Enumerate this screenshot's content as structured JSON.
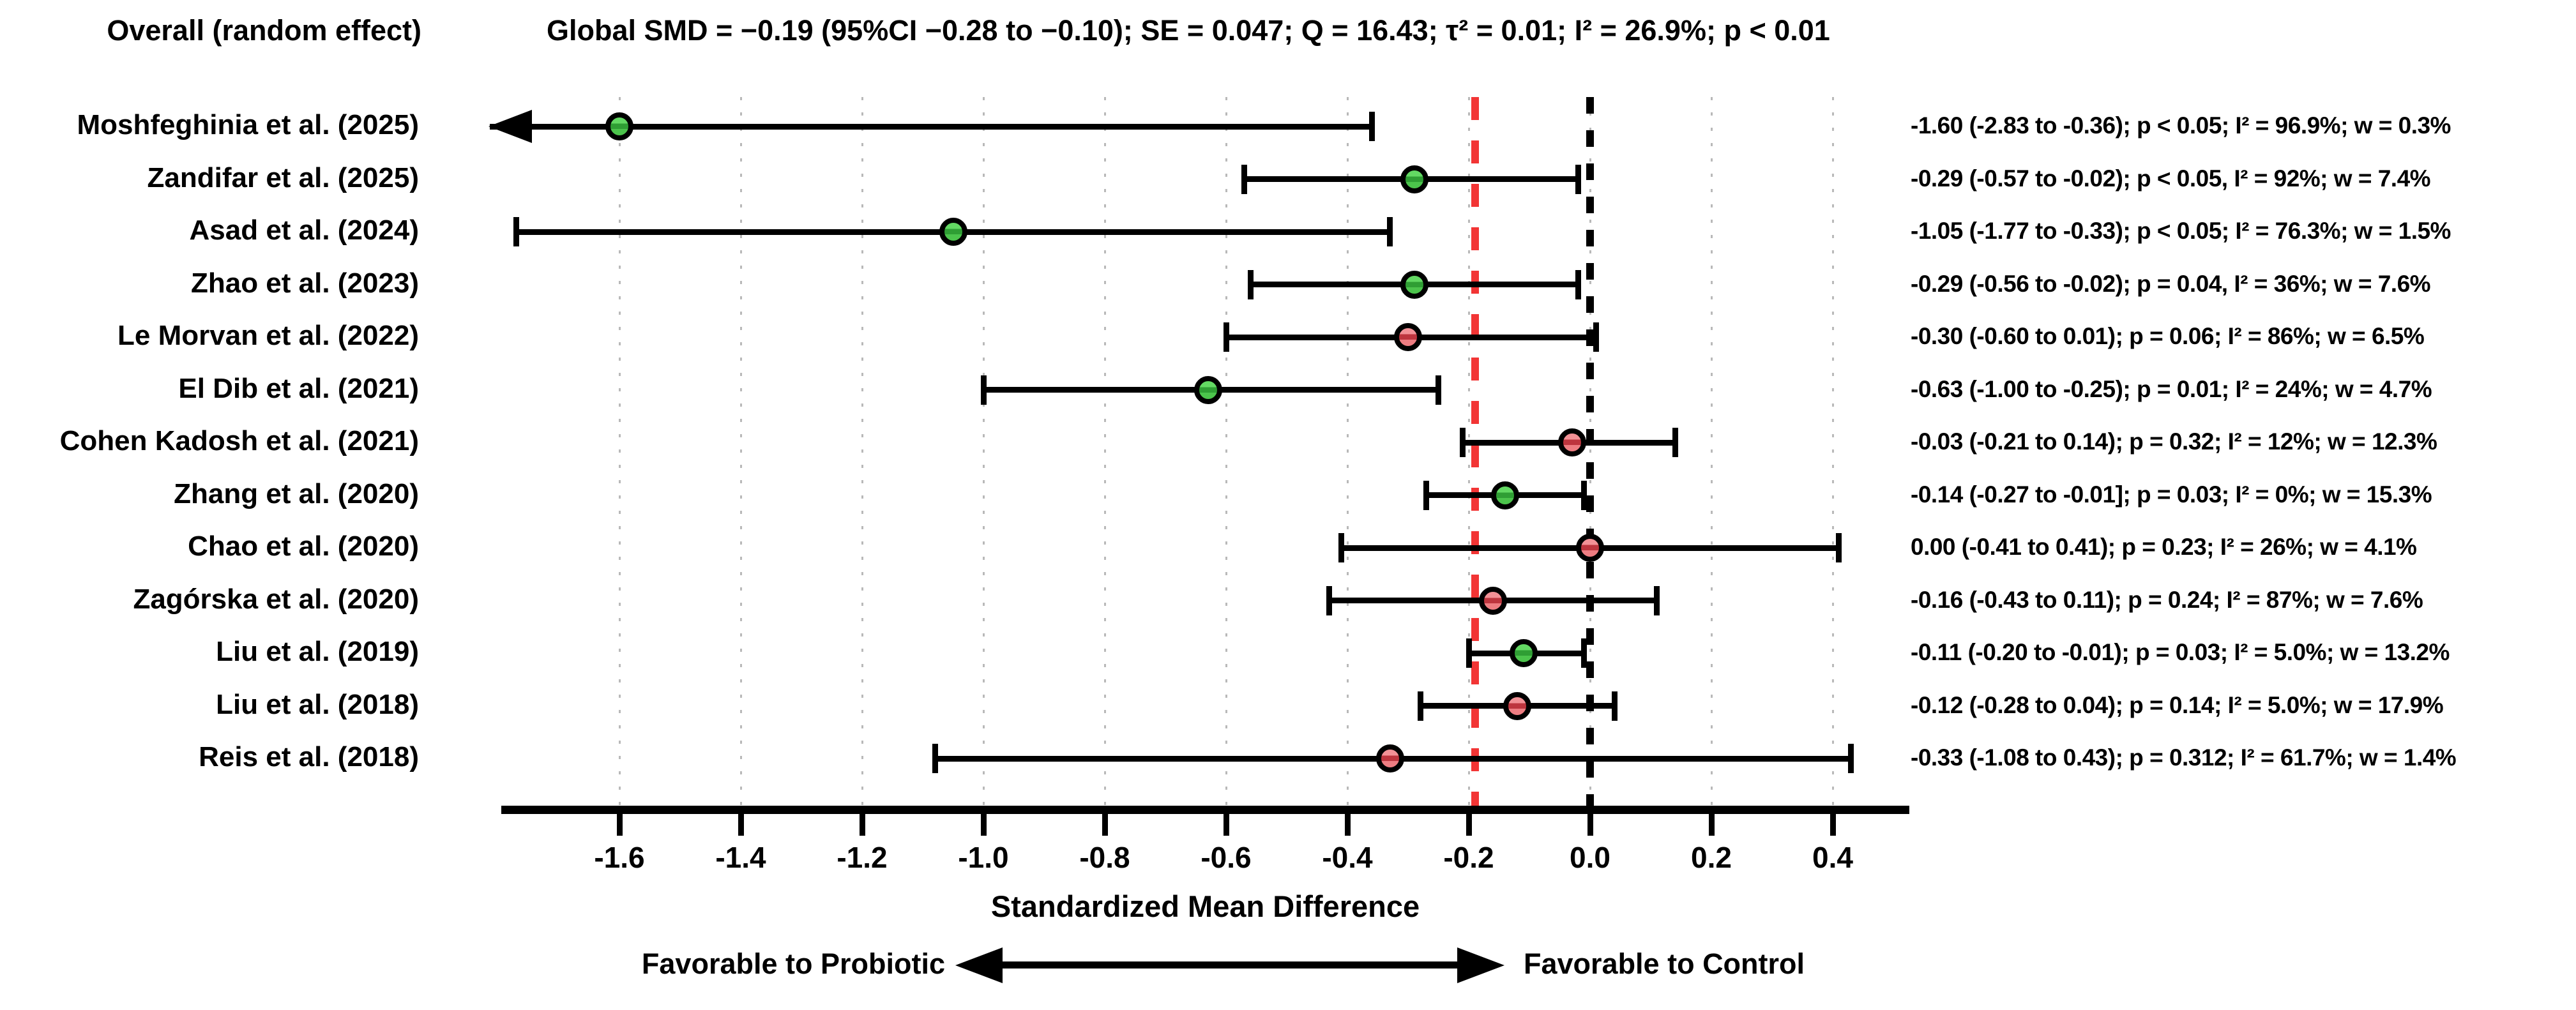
{
  "header": {
    "overall_label": "Overall (random effect)",
    "global_stats": "Global SMD = −0.19 (95%CI −0.28 to −0.10); SE = 0.047; Q = 16.43; τ² = 0.01; I² = 26.9%; p < 0.01"
  },
  "chart_data": {
    "type": "forest",
    "xlabel": "Standardized Mean Difference",
    "x_ticks": [
      -1.6,
      -1.4,
      -1.2,
      -1.0,
      -0.8,
      -0.6,
      -0.4,
      -0.2,
      0.0,
      0.2,
      0.4
    ],
    "xlim": [
      -1.79,
      0.53
    ],
    "grid": true,
    "null_line": 0.0,
    "global_effect_line": -0.19,
    "global_effect_line_style": "red-dashed",
    "null_line_style": "black-dashed",
    "studies": [
      {
        "label": "Moshfeghinia et al. (2025)",
        "smd": -1.6,
        "ci_low": -2.83,
        "ci_high": -0.36,
        "color": "green",
        "clipped_left": true,
        "stats": "-1.60 (-2.83 to -0.36); p < 0.05; I² =  96.9%; w = 0.3%"
      },
      {
        "label": "Zandifar et al. (2025)",
        "smd": -0.29,
        "ci_low": -0.57,
        "ci_high": -0.02,
        "color": "green",
        "clipped_left": false,
        "stats": "-0.29 (-0.57 to -0.02); p < 0.05, I² = 92%; w = 7.4%"
      },
      {
        "label": "Asad et al. (2024)",
        "smd": -1.05,
        "ci_low": -1.77,
        "ci_high": -0.33,
        "color": "green",
        "clipped_left": false,
        "stats": "-1.05 (-1.77 to -0.33); p < 0.05; I² = 76.3%; w = 1.5%"
      },
      {
        "label": "Zhao et al. (2023)",
        "smd": -0.29,
        "ci_low": -0.56,
        "ci_high": -0.02,
        "color": "green",
        "clipped_left": false,
        "stats": "-0.29 (-0.56 to -0.02); p = 0.04, I² = 36%; w = 7.6%"
      },
      {
        "label": "Le Morvan et al. (2022)",
        "smd": -0.3,
        "ci_low": -0.6,
        "ci_high": 0.01,
        "color": "red",
        "clipped_left": false,
        "stats": "-0.30 (-0.60 to 0.01); p = 0.06; I² = 86%; w = 6.5%"
      },
      {
        "label": "El Dib et al. (2021)",
        "smd": -0.63,
        "ci_low": -1.0,
        "ci_high": -0.25,
        "color": "green",
        "clipped_left": false,
        "stats": "-0.63 (-1.00 to -0.25); p = 0.01; I² = 24%; w = 4.7%"
      },
      {
        "label": "Cohen Kadosh et al. (2021)",
        "smd": -0.03,
        "ci_low": -0.21,
        "ci_high": 0.14,
        "color": "red",
        "clipped_left": false,
        "stats": "-0.03  (-0.21 to 0.14); p = 0.32; I² = 12%; w = 12.3%"
      },
      {
        "label": "Zhang et al. (2020)",
        "smd": -0.14,
        "ci_low": -0.27,
        "ci_high": -0.01,
        "color": "green",
        "clipped_left": false,
        "stats": "-0.14 (-0.27 to -0.01]; p = 0.03; I² = 0%; w = 15.3%"
      },
      {
        "label": "Chao et al. (2020)",
        "smd": 0.0,
        "ci_low": -0.41,
        "ci_high": 0.41,
        "color": "red",
        "clipped_left": false,
        "stats": "0.00 (-0.41 to 0.41); p = 0.23; I² = 26%; w = 4.1%"
      },
      {
        "label": "Zagórska et al. (2020)",
        "smd": -0.16,
        "ci_low": -0.43,
        "ci_high": 0.11,
        "color": "red",
        "clipped_left": false,
        "stats": "-0.16 (-0.43 to 0.11); p = 0.24; I² = 87%; w = 7.6%"
      },
      {
        "label": "Liu et al. (2019)",
        "smd": -0.11,
        "ci_low": -0.2,
        "ci_high": -0.01,
        "color": "green",
        "clipped_left": false,
        "stats": "-0.11 (-0.20 to -0.01); p = 0.03; I² = 5.0%; w = 13.2%"
      },
      {
        "label": "Liu et al. (2018)",
        "smd": -0.12,
        "ci_low": -0.28,
        "ci_high": 0.04,
        "color": "red",
        "clipped_left": false,
        "stats": "-0.12 (-0.28 to 0.04); p = 0.14; I² = 5.0%; w = 17.9%"
      },
      {
        "label": "Reis et al. (2018)",
        "smd": -0.33,
        "ci_low": -1.08,
        "ci_high": 0.43,
        "color": "red",
        "clipped_left": false,
        "stats": "-0.33 (-1.08 to 0.43); p = 0.312; I² = 61.7%; w = 1.4%"
      }
    ]
  },
  "footer": {
    "left_label": "Favorable to Probiotic",
    "right_label": "Favorable to Control"
  },
  "colors": {
    "green_light": "#63d963",
    "green_mid": "#4cc44c",
    "green_dark": "#2f9e34",
    "red_light": "#f29196",
    "red_mid": "#ee7d82",
    "red_dark": "#bd353e",
    "ref_red": "#f23535",
    "grid_gray": "#b9b9b9"
  }
}
